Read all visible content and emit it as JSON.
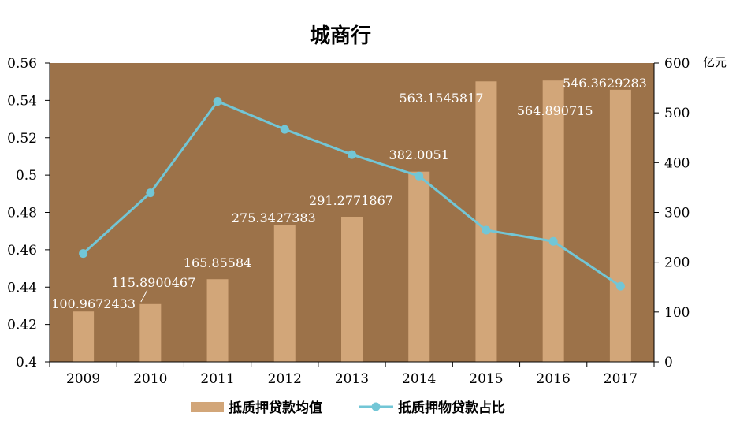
{
  "chart_data": {
    "type": "bar+line",
    "title": "城商行",
    "right_axis_unit": "亿元",
    "categories": [
      "2009",
      "2010",
      "2011",
      "2012",
      "2013",
      "2014",
      "2015",
      "2016",
      "2017"
    ],
    "left_axis": {
      "min": 0.4,
      "max": 0.56,
      "ticks": [
        "0.4",
        "0.42",
        "0.44",
        "0.46",
        "0.48",
        "0.5",
        "0.52",
        "0.54",
        "0.56"
      ]
    },
    "right_axis": {
      "min": 0,
      "max": 600,
      "ticks": [
        "0",
        "100",
        "200",
        "300",
        "400",
        "500",
        "600"
      ]
    },
    "series": [
      {
        "name": "抵质押贷款均值",
        "kind": "bar",
        "axis": "right",
        "color": "#d2a679",
        "values": [
          100.9672433,
          115.8900467,
          165.85584,
          275.3427383,
          291.2771867,
          382.0051,
          563.1545817,
          564.890715,
          546.3629283
        ],
        "labels": [
          "100.9672433",
          "115.8900467",
          "165.85584",
          "275.3427383",
          "291.2771867",
          "382.0051",
          "563.1545817",
          "564.890715",
          "546.3629283"
        ]
      },
      {
        "name": "抵质押物贷款占比",
        "kind": "line",
        "axis": "left",
        "color": "#72c6d6",
        "values": [
          0.458,
          0.4905,
          0.5395,
          0.5245,
          0.511,
          0.4995,
          0.4705,
          0.4645,
          0.4405
        ]
      }
    ],
    "plot_background": "#9c7249",
    "legend_position": "bottom",
    "grid": false
  }
}
